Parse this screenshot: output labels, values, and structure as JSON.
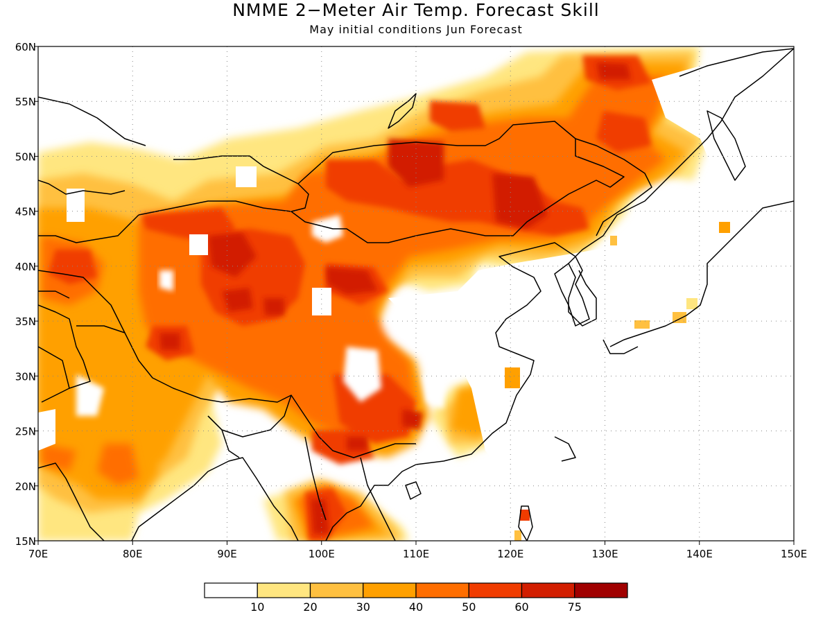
{
  "title": "NMME 2−Meter Air Temp. Forecast Skill",
  "subtitle": "May initial conditions  Jun Forecast",
  "map": {
    "lon_range": [
      70,
      150
    ],
    "lat_range": [
      15,
      60
    ],
    "lon_ticks": [
      "70E",
      "80E",
      "90E",
      "100E",
      "110E",
      "120E",
      "130E",
      "140E",
      "150E"
    ],
    "lat_ticks": [
      "15N",
      "20N",
      "25N",
      "30N",
      "35N",
      "40N",
      "45N",
      "50N",
      "55N",
      "60N"
    ],
    "grid": true
  },
  "colorbar": {
    "colors": [
      "#ffffff",
      "#ffe680",
      "#ffc040",
      "#ffa000",
      "#ff6e00",
      "#f03c00",
      "#d21e00",
      "#a00000"
    ],
    "labels": [
      "10",
      "20",
      "30",
      "40",
      "50",
      "60",
      "75"
    ]
  }
}
